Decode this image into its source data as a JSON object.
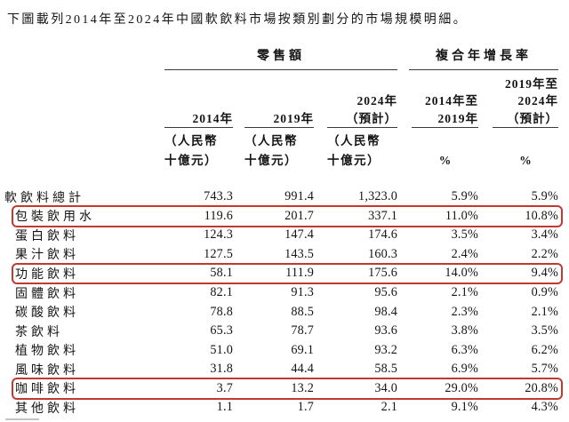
{
  "page": {
    "title": "下圖載列2014年至2024年中國軟飲料市場按類別劃分的市場規模明細。"
  },
  "colors": {
    "highlight_border": "#c13a30",
    "rule": "#3a3a3a",
    "text": "#141414"
  },
  "table": {
    "group_headers": [
      {
        "label": "零售額"
      },
      {
        "label": "複合年增長率"
      }
    ],
    "header": {
      "row1": {
        "c6": "2019年至"
      },
      "row2": {
        "c4": "2024年",
        "c5": "2014年至",
        "c6": "2024年"
      },
      "row3": {
        "c2": "2014年",
        "c3": "2019年",
        "c4": "（預計）",
        "c5": "2019年",
        "c6": "（預計）"
      },
      "unit_row1": {
        "c2": "（人民幣",
        "c3": "（人民幣",
        "c4": "（人民幣"
      },
      "unit_row2": {
        "c2": "十億元）",
        "c3": "十億元）",
        "c4": "十億元）",
        "c5": "%",
        "c6": "%"
      }
    },
    "rows": [
      {
        "category": "軟飲料總計",
        "indent": false,
        "highlight": false,
        "values": [
          "743.3",
          "991.4",
          "1,323.0",
          "5.9%",
          "5.9%"
        ]
      },
      {
        "category": "包裝飲用水",
        "indent": true,
        "highlight": true,
        "values": [
          "119.6",
          "201.7",
          "337.1",
          "11.0%",
          "10.8%"
        ]
      },
      {
        "category": "蛋白飲料",
        "indent": true,
        "highlight": false,
        "values": [
          "124.3",
          "147.4",
          "174.6",
          "3.5%",
          "3.4%"
        ]
      },
      {
        "category": "果汁飲料",
        "indent": true,
        "highlight": false,
        "values": [
          "127.5",
          "143.5",
          "160.3",
          "2.4%",
          "2.2%"
        ]
      },
      {
        "category": "功能飲料",
        "indent": true,
        "highlight": true,
        "values": [
          "58.1",
          "111.9",
          "175.6",
          "14.0%",
          "9.4%"
        ]
      },
      {
        "category": "固體飲料",
        "indent": true,
        "highlight": false,
        "values": [
          "82.1",
          "91.3",
          "95.6",
          "2.1%",
          "0.9%"
        ]
      },
      {
        "category": "碳酸飲料",
        "indent": true,
        "highlight": false,
        "values": [
          "78.8",
          "88.5",
          "98.4",
          "2.3%",
          "2.1%"
        ]
      },
      {
        "category": "茶飲料",
        "indent": true,
        "highlight": false,
        "values": [
          "65.3",
          "78.7",
          "93.6",
          "3.8%",
          "3.5%"
        ]
      },
      {
        "category": "植物飲料",
        "indent": true,
        "highlight": false,
        "values": [
          "51.0",
          "69.1",
          "93.2",
          "6.3%",
          "6.2%"
        ]
      },
      {
        "category": "風味飲料",
        "indent": true,
        "highlight": false,
        "values": [
          "31.8",
          "44.4",
          "58.5",
          "6.9%",
          "5.7%"
        ]
      },
      {
        "category": "咖啡飲料",
        "indent": true,
        "highlight": true,
        "values": [
          "3.7",
          "13.2",
          "34.0",
          "29.0%",
          "20.8%"
        ]
      },
      {
        "category": "其他飲料",
        "indent": true,
        "highlight": false,
        "values": [
          "1.1",
          "1.7",
          "2.1",
          "9.1%",
          "4.3%"
        ]
      }
    ]
  }
}
